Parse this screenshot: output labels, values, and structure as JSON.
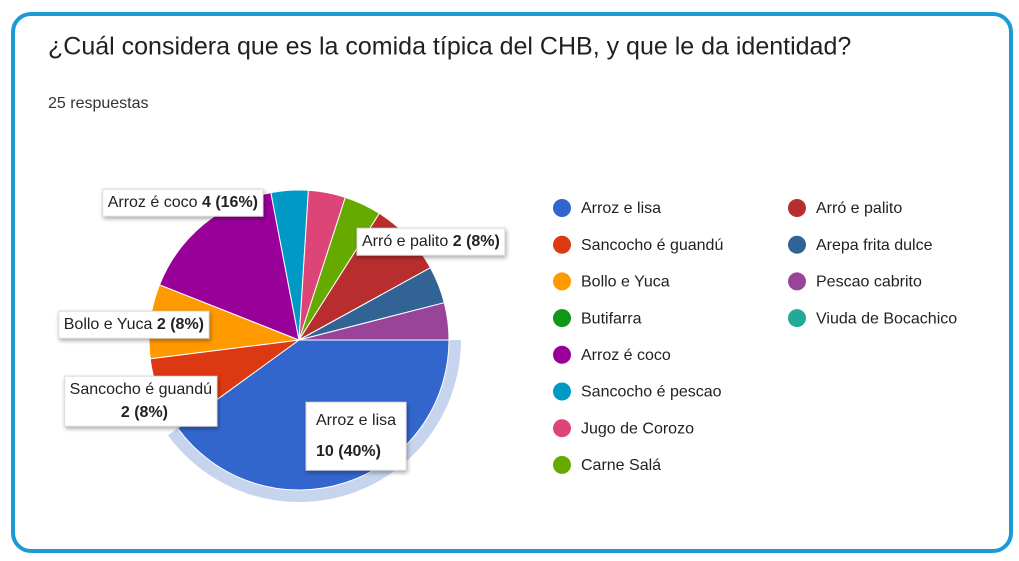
{
  "chart_data": {
    "type": "pie",
    "title": "¿Cuál considera que es la comida típica del CHB, y que le da identidad?",
    "subtitle": "25 respuestas",
    "categories": [
      "Arroz e lisa",
      "Sancocho é guandú",
      "Bollo e Yuca",
      "Butifarra",
      "Arroz é coco",
      "Sancocho é pescao",
      "Jugo de Corozo",
      "Carne Salá",
      "Arró e palito",
      "Arepa frita dulce",
      "Pescao cabrito",
      "Viuda de Bocachico"
    ],
    "values": [
      10,
      2,
      2,
      0,
      4,
      1,
      1,
      1,
      2,
      1,
      1,
      0
    ],
    "value_labels": [
      "10 (40%)",
      "2 (8%)",
      "2 (8%)",
      null,
      "4 (16%)",
      null,
      null,
      null,
      "2 (8%)",
      null,
      null,
      null
    ],
    "colors": [
      "#3366cc",
      "#dc3912",
      "#ff9900",
      "#109618",
      "#990099",
      "#0099c6",
      "#dd4477",
      "#66aa00",
      "#b82e2e",
      "#316395",
      "#994499",
      "#22aa99"
    ],
    "legend": "right"
  }
}
